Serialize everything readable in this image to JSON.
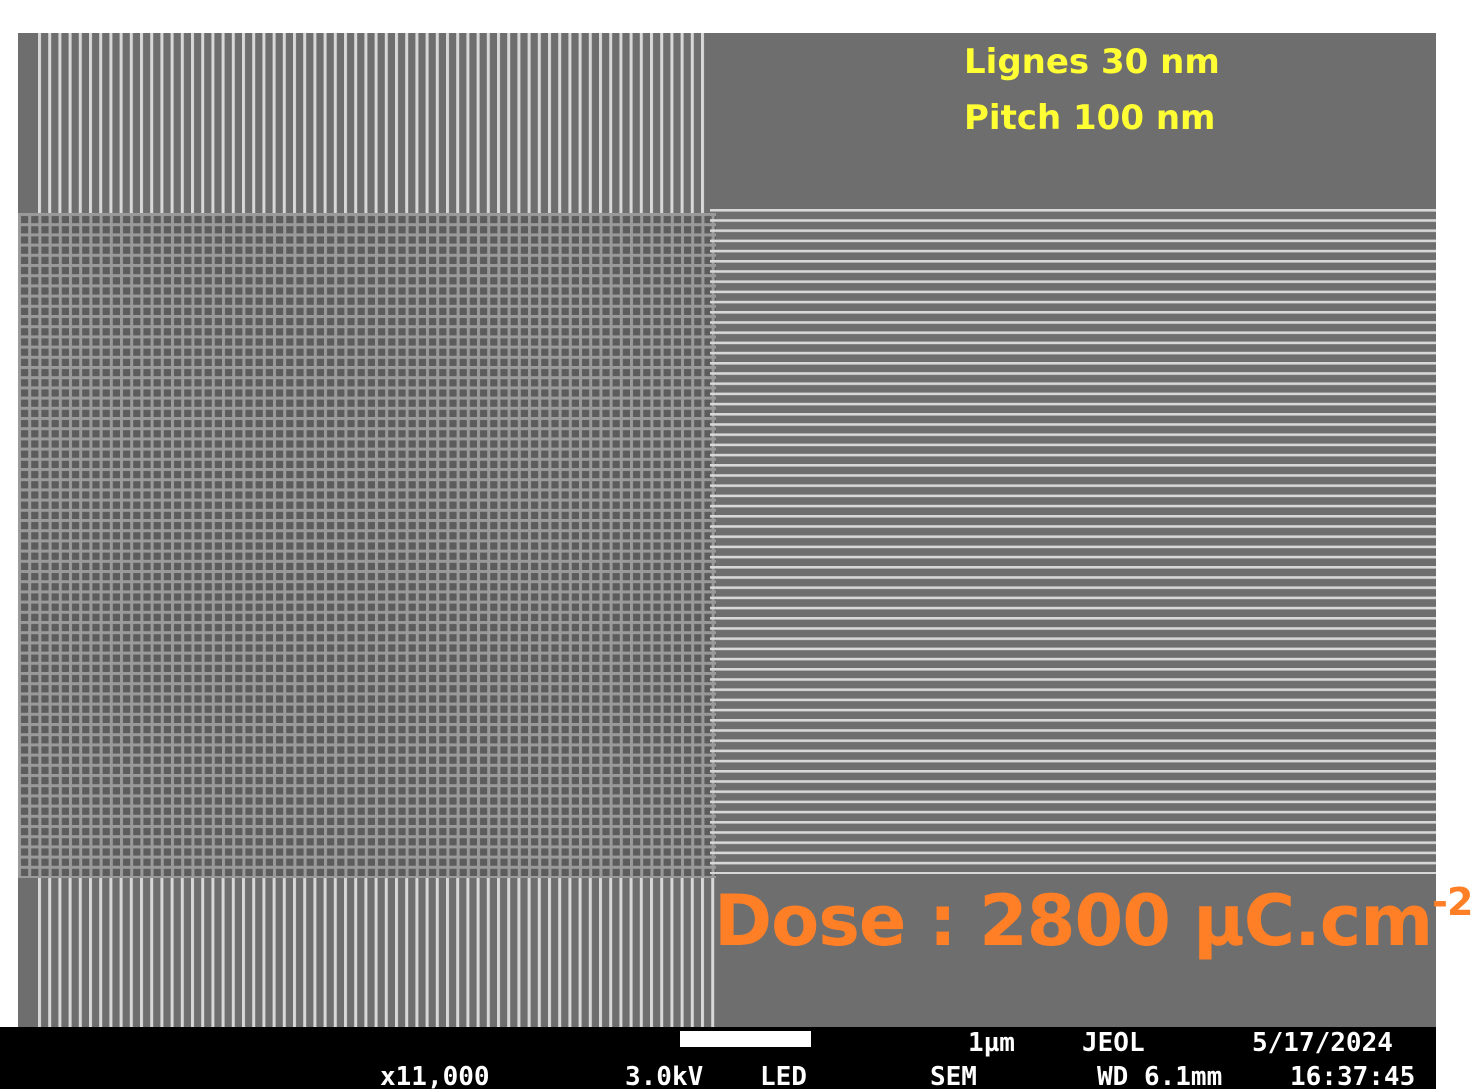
{
  "micrograph": {
    "annotation_lines": "Lignes 30 nm",
    "annotation_pitch": "Pitch 100 nm",
    "dose_prefix": "Dose : 2800 µC.cm",
    "dose_exponent": "-2",
    "colors": {
      "background": "#6e6e6e",
      "line": "#d8d8d8",
      "annotation_yellow": "#ffff33",
      "annotation_orange": "#ff7f27"
    }
  },
  "info_bar": {
    "scale": "1µm",
    "maker": "JEOL",
    "date": "5/17/2024",
    "magnification": "x11,000",
    "voltage": "3.0kV",
    "detector": "LED",
    "mode": "SEM",
    "working_distance": "WD 6.1mm",
    "time": "16:37:45"
  }
}
